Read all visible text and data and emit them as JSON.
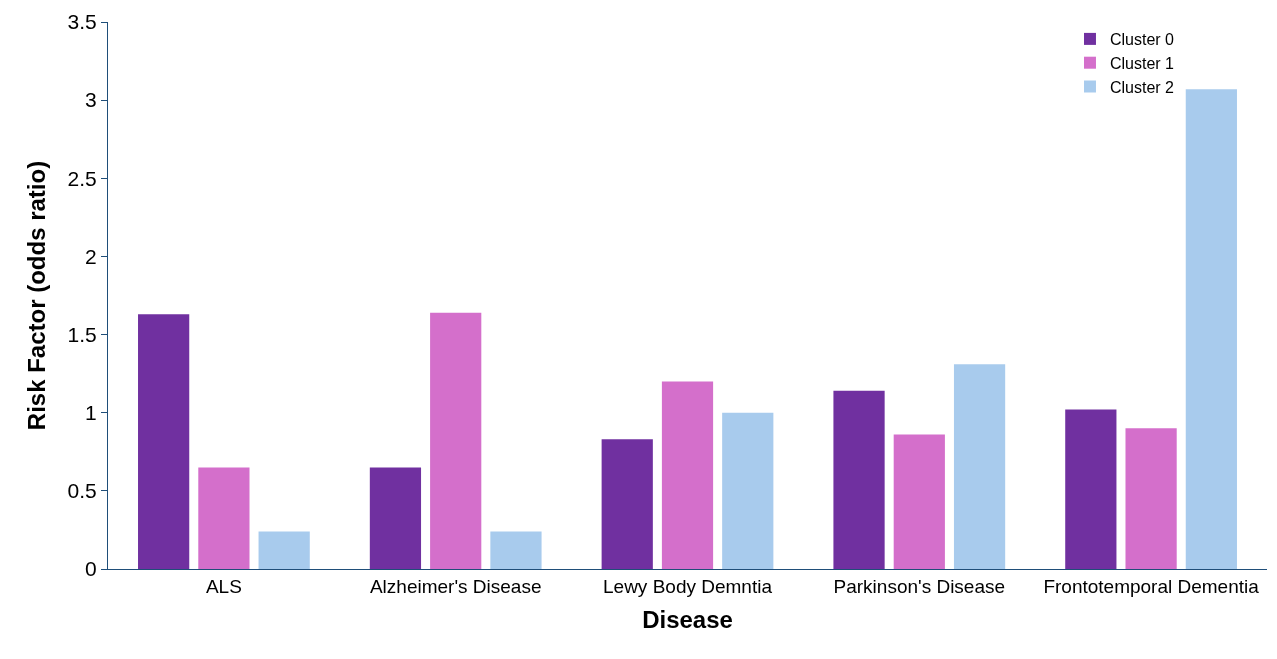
{
  "chart_data": {
    "type": "bar",
    "xlabel": "Disease",
    "ylabel": "Risk Factor (odds ratio)",
    "categories": [
      "ALS",
      "Alzheimer's Disease",
      "Lewy Body Demntia",
      "Parkinson's Disease",
      "Frontotemporal Dementia"
    ],
    "series": [
      {
        "name": "Cluster 0",
        "color": "#7030a0",
        "values": [
          1.63,
          0.65,
          0.83,
          1.14,
          1.02
        ]
      },
      {
        "name": "Cluster 1",
        "color": "#d46fcb",
        "values": [
          0.65,
          1.64,
          1.2,
          0.86,
          0.9
        ]
      },
      {
        "name": "Cluster 2",
        "color": "#a8cbed",
        "values": [
          0.24,
          0.24,
          1.0,
          1.31,
          3.07
        ]
      }
    ],
    "ylim": [
      0,
      3.5
    ],
    "yticks": [
      0,
      0.5,
      1,
      1.5,
      2,
      2.5,
      3,
      3.5
    ],
    "legend": "top right"
  }
}
